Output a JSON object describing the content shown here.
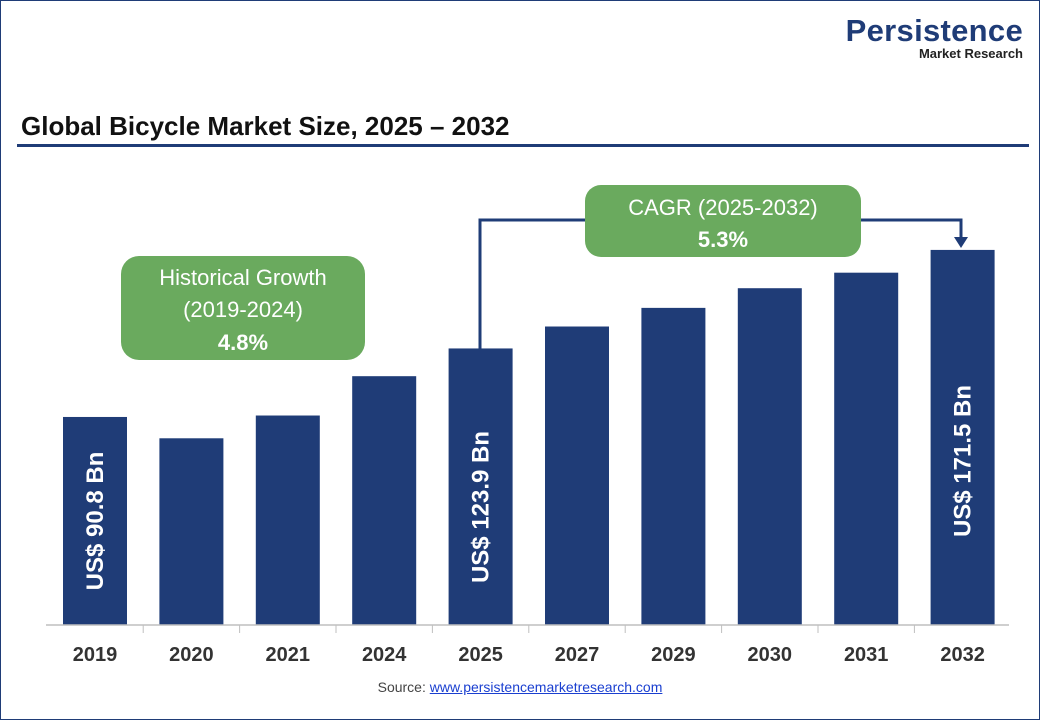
{
  "logo": {
    "line1": "Persistence",
    "line2": "Market Research"
  },
  "title": "Global Bicycle Market Size, 2025 – 2032",
  "source": {
    "label": "Source:",
    "link": "www.persistencemarketresearch.com"
  },
  "callouts": {
    "historical": {
      "line1": "Historical Growth",
      "line2": "(2019-2024)",
      "value": "4.8%"
    },
    "cagr": {
      "line1": "CAGR (2025-2032)",
      "value": "5.3%"
    }
  },
  "colors": {
    "bar": "#1f3c77",
    "callout": "#6aaa5e",
    "axis": "#bfbfbf"
  },
  "chart_data": {
    "type": "bar",
    "categories": [
      "2019",
      "2020",
      "2021",
      "2024",
      "2025",
      "2027",
      "2029",
      "2030",
      "2031",
      "2032"
    ],
    "values": [
      90.8,
      80.5,
      91.5,
      110.5,
      123.9,
      134.5,
      143.5,
      153,
      160.5,
      171.5
    ],
    "data_labels": {
      "2019": "US$ 90.8 Bn",
      "2025": "US$ 123.9 Bn",
      "2032": "US$ 171.5 Bn"
    },
    "unit": "US$ Bn",
    "grid": false
  }
}
